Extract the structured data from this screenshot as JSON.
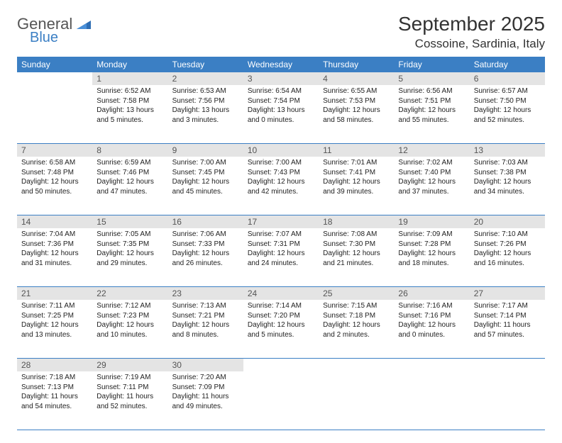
{
  "brand": {
    "word1": "General",
    "word2": "Blue"
  },
  "title": {
    "month": "September 2025",
    "location": "Cossoine, Sardinia, Italy"
  },
  "colors": {
    "accent": "#3b7fc4",
    "daynum_bg": "#e4e4e4",
    "text": "#222222"
  },
  "weekdays": [
    "Sunday",
    "Monday",
    "Tuesday",
    "Wednesday",
    "Thursday",
    "Friday",
    "Saturday"
  ],
  "weeks": [
    [
      {
        "n": "",
        "sr": "",
        "ss": "",
        "dl": ""
      },
      {
        "n": "1",
        "sr": "Sunrise: 6:52 AM",
        "ss": "Sunset: 7:58 PM",
        "dl": "Daylight: 13 hours and 5 minutes."
      },
      {
        "n": "2",
        "sr": "Sunrise: 6:53 AM",
        "ss": "Sunset: 7:56 PM",
        "dl": "Daylight: 13 hours and 3 minutes."
      },
      {
        "n": "3",
        "sr": "Sunrise: 6:54 AM",
        "ss": "Sunset: 7:54 PM",
        "dl": "Daylight: 13 hours and 0 minutes."
      },
      {
        "n": "4",
        "sr": "Sunrise: 6:55 AM",
        "ss": "Sunset: 7:53 PM",
        "dl": "Daylight: 12 hours and 58 minutes."
      },
      {
        "n": "5",
        "sr": "Sunrise: 6:56 AM",
        "ss": "Sunset: 7:51 PM",
        "dl": "Daylight: 12 hours and 55 minutes."
      },
      {
        "n": "6",
        "sr": "Sunrise: 6:57 AM",
        "ss": "Sunset: 7:50 PM",
        "dl": "Daylight: 12 hours and 52 minutes."
      }
    ],
    [
      {
        "n": "7",
        "sr": "Sunrise: 6:58 AM",
        "ss": "Sunset: 7:48 PM",
        "dl": "Daylight: 12 hours and 50 minutes."
      },
      {
        "n": "8",
        "sr": "Sunrise: 6:59 AM",
        "ss": "Sunset: 7:46 PM",
        "dl": "Daylight: 12 hours and 47 minutes."
      },
      {
        "n": "9",
        "sr": "Sunrise: 7:00 AM",
        "ss": "Sunset: 7:45 PM",
        "dl": "Daylight: 12 hours and 45 minutes."
      },
      {
        "n": "10",
        "sr": "Sunrise: 7:00 AM",
        "ss": "Sunset: 7:43 PM",
        "dl": "Daylight: 12 hours and 42 minutes."
      },
      {
        "n": "11",
        "sr": "Sunrise: 7:01 AM",
        "ss": "Sunset: 7:41 PM",
        "dl": "Daylight: 12 hours and 39 minutes."
      },
      {
        "n": "12",
        "sr": "Sunrise: 7:02 AM",
        "ss": "Sunset: 7:40 PM",
        "dl": "Daylight: 12 hours and 37 minutes."
      },
      {
        "n": "13",
        "sr": "Sunrise: 7:03 AM",
        "ss": "Sunset: 7:38 PM",
        "dl": "Daylight: 12 hours and 34 minutes."
      }
    ],
    [
      {
        "n": "14",
        "sr": "Sunrise: 7:04 AM",
        "ss": "Sunset: 7:36 PM",
        "dl": "Daylight: 12 hours and 31 minutes."
      },
      {
        "n": "15",
        "sr": "Sunrise: 7:05 AM",
        "ss": "Sunset: 7:35 PM",
        "dl": "Daylight: 12 hours and 29 minutes."
      },
      {
        "n": "16",
        "sr": "Sunrise: 7:06 AM",
        "ss": "Sunset: 7:33 PM",
        "dl": "Daylight: 12 hours and 26 minutes."
      },
      {
        "n": "17",
        "sr": "Sunrise: 7:07 AM",
        "ss": "Sunset: 7:31 PM",
        "dl": "Daylight: 12 hours and 24 minutes."
      },
      {
        "n": "18",
        "sr": "Sunrise: 7:08 AM",
        "ss": "Sunset: 7:30 PM",
        "dl": "Daylight: 12 hours and 21 minutes."
      },
      {
        "n": "19",
        "sr": "Sunrise: 7:09 AM",
        "ss": "Sunset: 7:28 PM",
        "dl": "Daylight: 12 hours and 18 minutes."
      },
      {
        "n": "20",
        "sr": "Sunrise: 7:10 AM",
        "ss": "Sunset: 7:26 PM",
        "dl": "Daylight: 12 hours and 16 minutes."
      }
    ],
    [
      {
        "n": "21",
        "sr": "Sunrise: 7:11 AM",
        "ss": "Sunset: 7:25 PM",
        "dl": "Daylight: 12 hours and 13 minutes."
      },
      {
        "n": "22",
        "sr": "Sunrise: 7:12 AM",
        "ss": "Sunset: 7:23 PM",
        "dl": "Daylight: 12 hours and 10 minutes."
      },
      {
        "n": "23",
        "sr": "Sunrise: 7:13 AM",
        "ss": "Sunset: 7:21 PM",
        "dl": "Daylight: 12 hours and 8 minutes."
      },
      {
        "n": "24",
        "sr": "Sunrise: 7:14 AM",
        "ss": "Sunset: 7:20 PM",
        "dl": "Daylight: 12 hours and 5 minutes."
      },
      {
        "n": "25",
        "sr": "Sunrise: 7:15 AM",
        "ss": "Sunset: 7:18 PM",
        "dl": "Daylight: 12 hours and 2 minutes."
      },
      {
        "n": "26",
        "sr": "Sunrise: 7:16 AM",
        "ss": "Sunset: 7:16 PM",
        "dl": "Daylight: 12 hours and 0 minutes."
      },
      {
        "n": "27",
        "sr": "Sunrise: 7:17 AM",
        "ss": "Sunset: 7:14 PM",
        "dl": "Daylight: 11 hours and 57 minutes."
      }
    ],
    [
      {
        "n": "28",
        "sr": "Sunrise: 7:18 AM",
        "ss": "Sunset: 7:13 PM",
        "dl": "Daylight: 11 hours and 54 minutes."
      },
      {
        "n": "29",
        "sr": "Sunrise: 7:19 AM",
        "ss": "Sunset: 7:11 PM",
        "dl": "Daylight: 11 hours and 52 minutes."
      },
      {
        "n": "30",
        "sr": "Sunrise: 7:20 AM",
        "ss": "Sunset: 7:09 PM",
        "dl": "Daylight: 11 hours and 49 minutes."
      },
      {
        "n": "",
        "sr": "",
        "ss": "",
        "dl": ""
      },
      {
        "n": "",
        "sr": "",
        "ss": "",
        "dl": ""
      },
      {
        "n": "",
        "sr": "",
        "ss": "",
        "dl": ""
      },
      {
        "n": "",
        "sr": "",
        "ss": "",
        "dl": ""
      }
    ]
  ]
}
